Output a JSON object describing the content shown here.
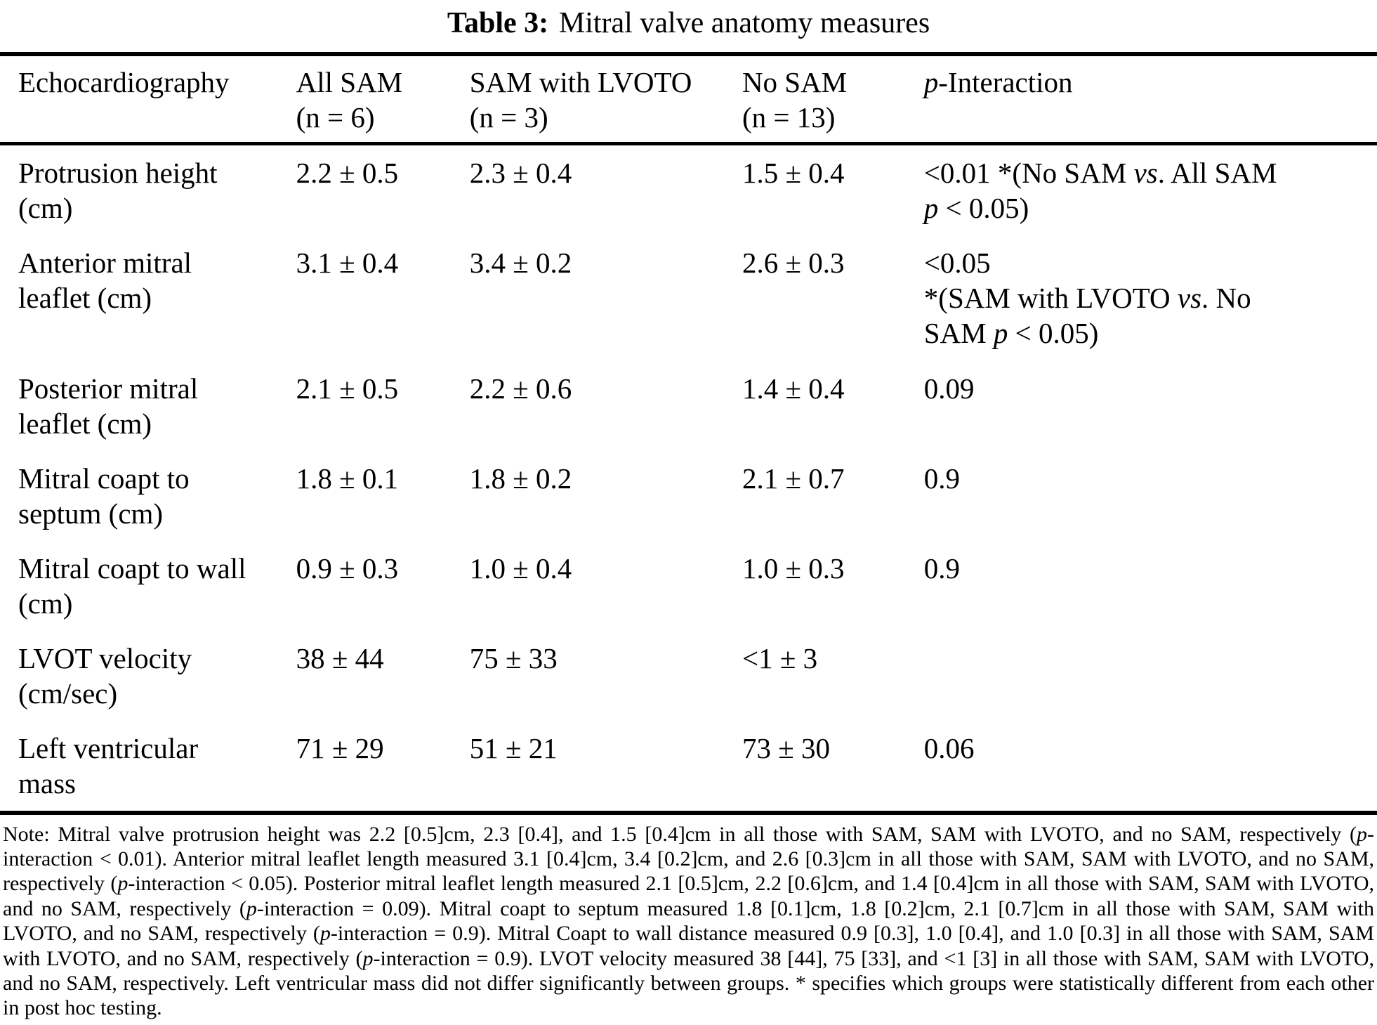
{
  "title": {
    "label": "Table 3:",
    "text": "Mitral valve anatomy measures"
  },
  "table": {
    "header": {
      "echo": "Echocardiography",
      "all_sam": [
        "All SAM",
        "(n = 6)"
      ],
      "sam_lvoto": [
        "SAM with LVOTO",
        "(n = 3)"
      ],
      "no_sam": [
        "No SAM",
        "(n = 13)"
      ],
      "p_interaction": [
        {
          "text": "p",
          "italic": true
        },
        {
          "text": "-Interaction"
        }
      ]
    },
    "rows": [
      {
        "measure": {
          "line1": "Protrusion height",
          "line2": "(cm)"
        },
        "all_sam": "2.2 ± 0.5",
        "sam_lvoto": "2.3 ± 0.4",
        "no_sam": "1.5 ± 0.4",
        "p_interaction": [
          {
            "text": "<0.01 *(No SAM "
          },
          {
            "text": "vs",
            "italic": true
          },
          {
            "text": ". All SAM"
          },
          {
            "br": true
          },
          {
            "text": "p",
            "italic": true
          },
          {
            "text": " < 0.05)"
          }
        ]
      },
      {
        "measure": {
          "line1": "Anterior mitral",
          "line2": "leaflet (cm)"
        },
        "all_sam": "3.1 ± 0.4",
        "sam_lvoto": "3.4 ± 0.2",
        "no_sam": "2.6 ± 0.3",
        "p_interaction": [
          {
            "text": "<0.05"
          },
          {
            "br": true
          },
          {
            "text": "*(SAM with LVOTO "
          },
          {
            "text": "vs",
            "italic": true
          },
          {
            "text": ". No"
          },
          {
            "br": true
          },
          {
            "text": "SAM "
          },
          {
            "text": "p",
            "italic": true
          },
          {
            "text": " < 0.05)"
          }
        ]
      },
      {
        "measure": {
          "line1": "Posterior mitral",
          "line2": "leaflet (cm)"
        },
        "all_sam": "2.1 ± 0.5",
        "sam_lvoto": "2.2 ± 0.6",
        "no_sam": "1.4 ± 0.4",
        "p_interaction": [
          {
            "text": "0.09"
          }
        ]
      },
      {
        "measure": {
          "line1": "Mitral coapt to",
          "line2": "septum (cm)"
        },
        "all_sam": "1.8 ± 0.1",
        "sam_lvoto": "1.8 ± 0.2",
        "no_sam": "2.1 ± 0.7",
        "p_interaction": [
          {
            "text": "0.9"
          }
        ]
      },
      {
        "measure": {
          "line1": "Mitral coapt to wall",
          "line2": "(cm)"
        },
        "all_sam": "0.9 ± 0.3",
        "sam_lvoto": "1.0 ± 0.4",
        "no_sam": "1.0 ± 0.3",
        "p_interaction": [
          {
            "text": "0.9"
          }
        ]
      },
      {
        "measure": {
          "line1": "LVOT velocity",
          "line2": "(cm/sec)"
        },
        "all_sam": "38 ± 44",
        "sam_lvoto": "75 ± 33",
        "no_sam": "<1 ± 3",
        "p_interaction": []
      },
      {
        "measure": {
          "line1": "Left ventricular",
          "line2": "mass"
        },
        "all_sam": "71 ± 29",
        "sam_lvoto": "51 ± 21",
        "no_sam": "73 ± 30",
        "p_interaction": [
          {
            "text": "0.06"
          }
        ]
      }
    ]
  },
  "note": {
    "segments": [
      {
        "text": "Note: Mitral valve protrusion height was 2.2 [0.5]cm, 2.3 [0.4], and 1.5 [0.4]cm in all those with SAM, SAM with LVOTO, and no SAM, respectively ("
      },
      {
        "text": "p",
        "italic": true
      },
      {
        "text": "-interaction < 0.01). Anterior mitral leaflet length measured 3.1 [0.4]cm, 3.4 [0.2]cm, and 2.6 [0.3]cm in all those with SAM, SAM with LVOTO, and no SAM, respectively ("
      },
      {
        "text": "p",
        "italic": true
      },
      {
        "text": "-interaction < 0.05). Posterior mitral leaflet length measured 2.1 [0.5]cm, 2.2 [0.6]cm, and 1.4 [0.4]cm in all those with SAM, SAM with LVOTO, and no SAM, respectively ("
      },
      {
        "text": "p",
        "italic": true
      },
      {
        "text": "-interaction = 0.09). Mitral coapt to septum measured 1.8 [0.1]cm, 1.8 [0.2]cm, 2.1 [0.7]cm in all those with SAM, SAM with LVOTO, and no SAM, respectively ("
      },
      {
        "text": "p",
        "italic": true
      },
      {
        "text": "-interaction = 0.9). Mitral Coapt to wall distance measured 0.9 [0.3], 1.0 [0.4], and 1.0 [0.3] in all those with SAM, SAM with LVOTO, and no SAM, respectively ("
      },
      {
        "text": "p",
        "italic": true
      },
      {
        "text": "-interaction = 0.9). LVOT velocity measured 38 [44], 75 [33], and <1 [3] in all those with SAM, SAM with LVOTO, and no SAM, respectively. Left ventricular mass did not differ significantly between groups. * specifies which groups were statistically different from each other in post hoc testing."
      }
    ]
  }
}
